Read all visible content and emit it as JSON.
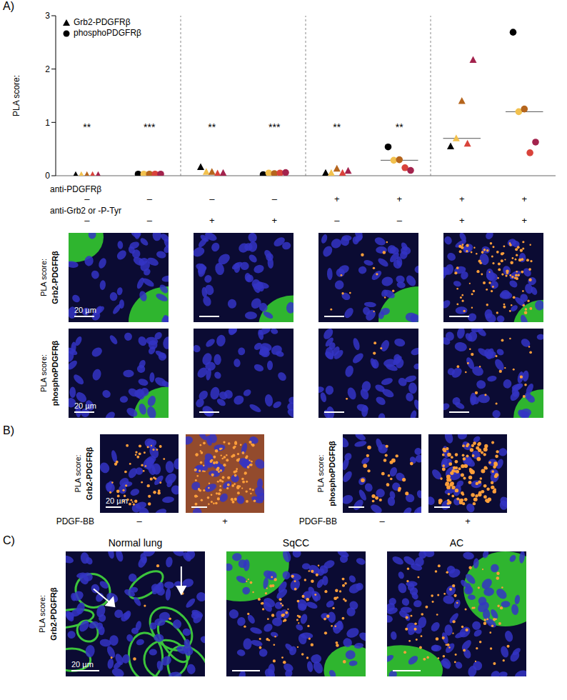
{
  "panel_labels": [
    "A)",
    "B)",
    "C)"
  ],
  "chart_data": {
    "type": "scatter",
    "ylabel": "PLA score:",
    "ylim": [
      0,
      3
    ],
    "yticks": [
      0,
      1,
      2,
      3
    ],
    "tick_labels": "y",
    "legend": "top-left",
    "colors": [
      "#000000",
      "#f2c14e",
      "#b5651d",
      "#d9433b",
      "#a3234d"
    ],
    "series": [
      {
        "name": "Grb2-PDGFRβ",
        "marker": "triangle",
        "color": "#000000"
      },
      {
        "name": "phosphoPDGFRβ",
        "marker": "circle",
        "color": "#000000"
      }
    ],
    "groups": [
      {
        "series": "Grb2-PDGFRβ",
        "values": [
          0.01,
          0.01,
          0.01,
          0.01,
          0.01
        ],
        "median": null,
        "significance": "**"
      },
      {
        "series": "phosphoPDGFRβ",
        "values": [
          0.03,
          0.03,
          0.03,
          0.03,
          0.03
        ],
        "median": null,
        "significance": "***"
      },
      {
        "series": "Grb2-PDGFRβ",
        "values": [
          0.16,
          0.07,
          0.07,
          0.04,
          0.05
        ],
        "median": null,
        "significance": "**"
      },
      {
        "series": "phosphoPDGFRβ",
        "values": [
          0.02,
          0.05,
          0.04,
          0.05,
          0.06
        ],
        "median": null,
        "significance": "***"
      },
      {
        "series": "Grb2-PDGFRβ",
        "values": [
          0.05,
          0.05,
          0.13,
          0.05,
          0.09
        ],
        "median": null,
        "significance": "**"
      },
      {
        "series": "phosphoPDGFRβ",
        "values": [
          0.54,
          0.29,
          0.3,
          0.15,
          0.1
        ],
        "median": 0.29,
        "significance": "**"
      },
      {
        "series": "Grb2-PDGFRβ",
        "values": [
          0.55,
          0.7,
          1.4,
          0.6,
          2.17
        ],
        "median": 0.7,
        "significance": null
      },
      {
        "series": "phosphoPDGFRβ",
        "values": [
          2.69,
          1.2,
          1.25,
          0.43,
          0.63
        ],
        "median": 1.2,
        "significance": null
      }
    ],
    "conditions": [
      {
        "label": "anti-PDGFRβ",
        "signs": [
          "–",
          "–",
          "–",
          "–",
          "+",
          "+",
          "+",
          "+"
        ]
      },
      {
        "label": "anti-Grb2 or -P-Tyr",
        "signs": [
          "–",
          "–",
          "+",
          "+",
          "–",
          "–",
          "+",
          "+"
        ]
      }
    ]
  },
  "panel_a_images": {
    "prefix": "PLA score:",
    "row_labels": [
      "Grb2-PDGFRβ",
      "phosphoPDGFRβ"
    ],
    "scale_bar": "20 µm"
  },
  "panel_b": {
    "prefix": "PLA score:",
    "row_labels": [
      "Grb2-PDGFRβ",
      "phosphoPDGFRβ"
    ],
    "condition_label": "PDGF-BB",
    "conditions": [
      "–",
      "+"
    ],
    "scale_bar": "20 µm"
  },
  "panel_c": {
    "prefix": "PLA score:",
    "row_label": "Grb2-PDGFRβ",
    "titles": [
      "Normal lung",
      "SqCC",
      "AC"
    ],
    "scale_bar": "20 µm"
  }
}
